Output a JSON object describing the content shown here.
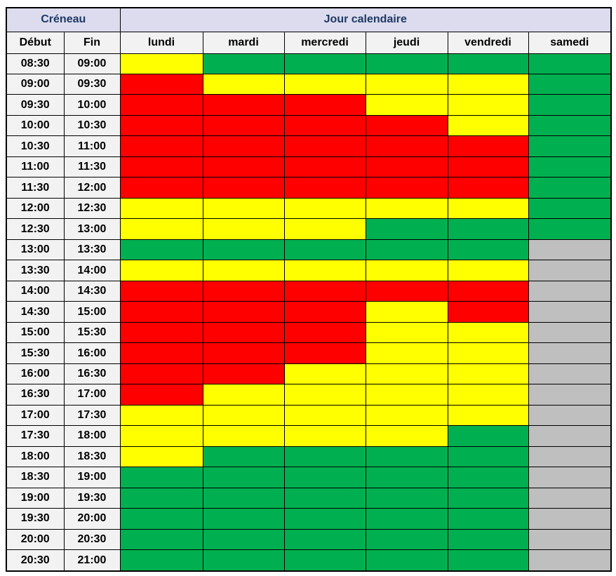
{
  "header": {
    "creneau_label": "Créneau",
    "jour_label": "Jour calendaire",
    "debut_label": "Début",
    "fin_label": "Fin"
  },
  "colors": {
    "red": "#FF0000",
    "yellow": "#FFFF00",
    "green": "#00B050",
    "gray": "#BFBFBF",
    "header_bg": "#DCDCEE",
    "subheader_bg": "#F2F2F2",
    "header_text": "#1F3864",
    "border": "#000000"
  },
  "chart_data": {
    "type": "heatmap",
    "title": "Créneau / Jour calendaire",
    "x_categories": [
      "lundi",
      "mardi",
      "mercredi",
      "jeudi",
      "vendredi",
      "samedi"
    ],
    "y_axis_label": "Créneau",
    "x_axis_label": "Jour calendaire",
    "value_colors": {
      "red": "#FF0000",
      "yellow": "#FFFF00",
      "green": "#00B050",
      "gray": "#BFBFBF"
    },
    "rows": [
      {
        "start": "08:30",
        "end": "09:00",
        "values": [
          "yellow",
          "green",
          "green",
          "green",
          "green",
          "green"
        ]
      },
      {
        "start": "09:00",
        "end": "09:30",
        "values": [
          "red",
          "yellow",
          "yellow",
          "yellow",
          "yellow",
          "green"
        ]
      },
      {
        "start": "09:30",
        "end": "10:00",
        "values": [
          "red",
          "red",
          "red",
          "yellow",
          "yellow",
          "green"
        ]
      },
      {
        "start": "10:00",
        "end": "10:30",
        "values": [
          "red",
          "red",
          "red",
          "red",
          "yellow",
          "green"
        ]
      },
      {
        "start": "10:30",
        "end": "11:00",
        "values": [
          "red",
          "red",
          "red",
          "red",
          "red",
          "green"
        ]
      },
      {
        "start": "11:00",
        "end": "11:30",
        "values": [
          "red",
          "red",
          "red",
          "red",
          "red",
          "green"
        ]
      },
      {
        "start": "11:30",
        "end": "12:00",
        "values": [
          "red",
          "red",
          "red",
          "red",
          "red",
          "green"
        ]
      },
      {
        "start": "12:00",
        "end": "12:30",
        "values": [
          "yellow",
          "yellow",
          "yellow",
          "yellow",
          "yellow",
          "green"
        ]
      },
      {
        "start": "12:30",
        "end": "13:00",
        "values": [
          "yellow",
          "yellow",
          "yellow",
          "green",
          "green",
          "green"
        ]
      },
      {
        "start": "13:00",
        "end": "13:30",
        "values": [
          "green",
          "green",
          "green",
          "green",
          "green",
          "gray"
        ]
      },
      {
        "start": "13:30",
        "end": "14:00",
        "values": [
          "yellow",
          "yellow",
          "yellow",
          "yellow",
          "yellow",
          "gray"
        ]
      },
      {
        "start": "14:00",
        "end": "14:30",
        "values": [
          "red",
          "red",
          "red",
          "red",
          "red",
          "gray"
        ]
      },
      {
        "start": "14:30",
        "end": "15:00",
        "values": [
          "red",
          "red",
          "red",
          "yellow",
          "red",
          "gray"
        ]
      },
      {
        "start": "15:00",
        "end": "15:30",
        "values": [
          "red",
          "red",
          "red",
          "yellow",
          "yellow",
          "gray"
        ]
      },
      {
        "start": "15:30",
        "end": "16:00",
        "values": [
          "red",
          "red",
          "red",
          "yellow",
          "yellow",
          "gray"
        ]
      },
      {
        "start": "16:00",
        "end": "16:30",
        "values": [
          "red",
          "red",
          "yellow",
          "yellow",
          "yellow",
          "gray"
        ]
      },
      {
        "start": "16:30",
        "end": "17:00",
        "values": [
          "red",
          "yellow",
          "yellow",
          "yellow",
          "yellow",
          "gray"
        ]
      },
      {
        "start": "17:00",
        "end": "17:30",
        "values": [
          "yellow",
          "yellow",
          "yellow",
          "yellow",
          "yellow",
          "gray"
        ]
      },
      {
        "start": "17:30",
        "end": "18:00",
        "values": [
          "yellow",
          "yellow",
          "yellow",
          "yellow",
          "green",
          "gray"
        ]
      },
      {
        "start": "18:00",
        "end": "18:30",
        "values": [
          "yellow",
          "green",
          "green",
          "green",
          "green",
          "gray"
        ]
      },
      {
        "start": "18:30",
        "end": "19:00",
        "values": [
          "green",
          "green",
          "green",
          "green",
          "green",
          "gray"
        ]
      },
      {
        "start": "19:00",
        "end": "19:30",
        "values": [
          "green",
          "green",
          "green",
          "green",
          "green",
          "gray"
        ]
      },
      {
        "start": "19:30",
        "end": "20:00",
        "values": [
          "green",
          "green",
          "green",
          "green",
          "green",
          "gray"
        ]
      },
      {
        "start": "20:00",
        "end": "20:30",
        "values": [
          "green",
          "green",
          "green",
          "green",
          "green",
          "gray"
        ]
      },
      {
        "start": "20:30",
        "end": "21:00",
        "values": [
          "green",
          "green",
          "green",
          "green",
          "green",
          "gray"
        ]
      }
    ]
  }
}
